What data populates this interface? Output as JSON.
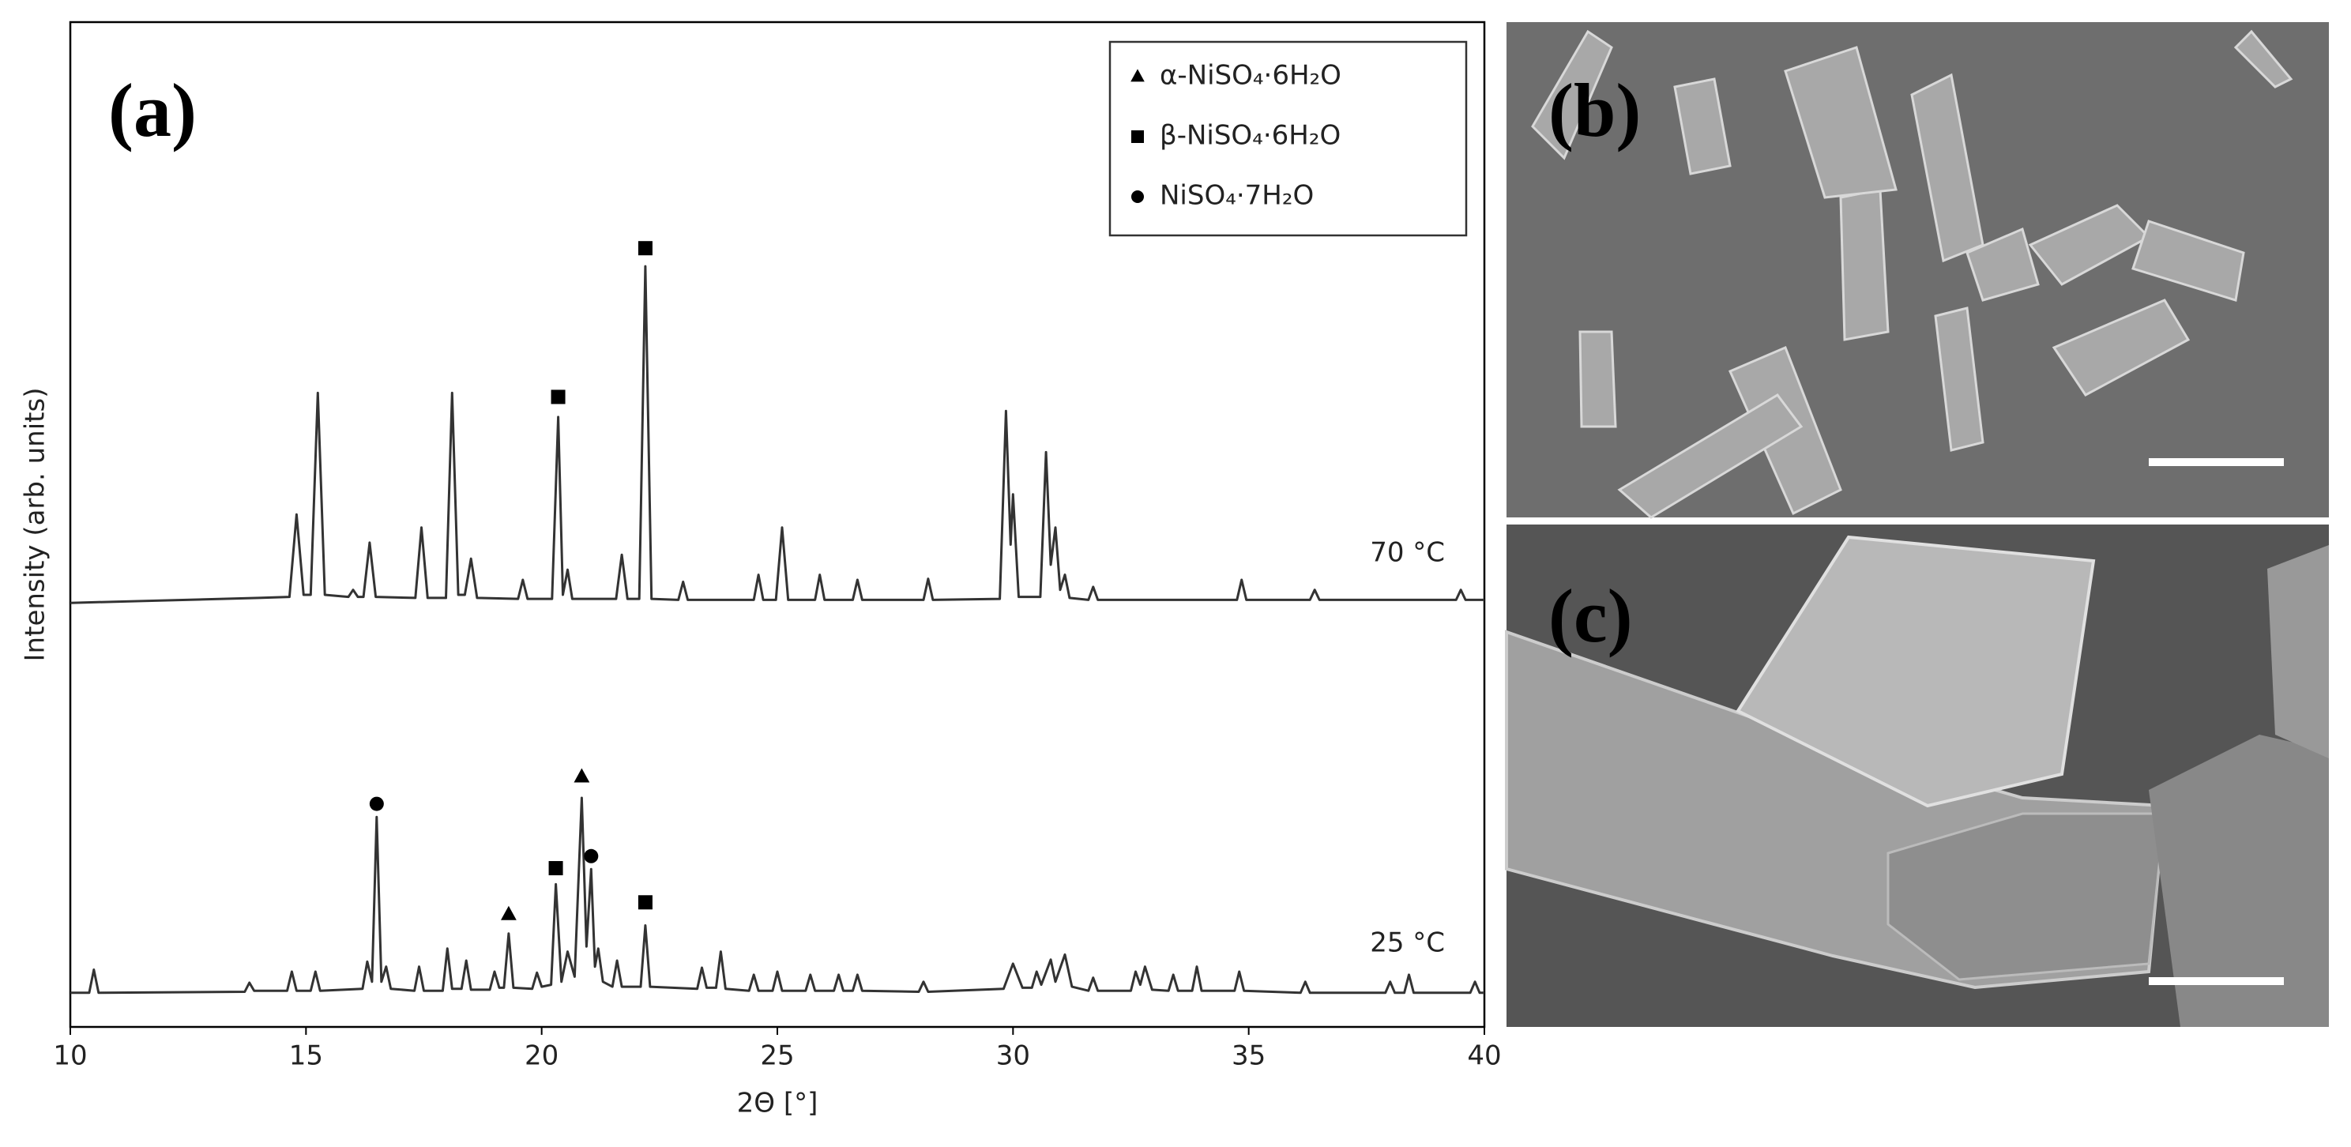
{
  "chart_data": {
    "type": "line",
    "xlabel": "2Θ [°]",
    "ylabel": "Intensity (arb. units)",
    "panel_label": "(a)",
    "xlim": [
      10,
      40
    ],
    "xticks": [
      10,
      15,
      20,
      25,
      30,
      35,
      40
    ],
    "ylim": [
      0,
      100
    ],
    "series": [
      {
        "name": "70 °C",
        "color": "#333333",
        "x": [
          10,
          14.0,
          14.65,
          14.8,
          14.95,
          15.1,
          15.25,
          15.4,
          15.9,
          16.0,
          16.1,
          16.22,
          16.35,
          16.48,
          17.32,
          17.45,
          17.58,
          17.97,
          18.1,
          18.23,
          18.37,
          18.5,
          18.63,
          19.5,
          19.6,
          19.7,
          20.22,
          20.35,
          20.45,
          20.55,
          20.65,
          21.58,
          21.7,
          21.82,
          22.07,
          22.2,
          22.33,
          22.9,
          23.0,
          23.1,
          24.5,
          24.6,
          24.7,
          24.97,
          25.1,
          25.23,
          25.8,
          25.9,
          26.0,
          26.6,
          26.7,
          26.8,
          28.1,
          28.2,
          28.3,
          29.72,
          29.85,
          29.95,
          30.0,
          30.12,
          30.58,
          30.7,
          30.8,
          30.9,
          31.0,
          31.1,
          31.2,
          31.6,
          31.7,
          31.8,
          34.75,
          34.85,
          34.95,
          36.3,
          36.4,
          36.5,
          39.4,
          39.5,
          39.6,
          40
        ],
        "values": [
          42.2,
          42.7,
          42.8,
          51,
          43,
          43,
          63.1,
          43,
          42.8,
          43.5,
          42.8,
          42.8,
          48.2,
          42.8,
          42.7,
          49.7,
          42.7,
          42.7,
          63.1,
          43,
          43,
          46.6,
          42.7,
          42.6,
          44.5,
          42.6,
          42.6,
          60.7,
          43,
          45.5,
          42.6,
          42.6,
          47,
          42.6,
          42.6,
          75.7,
          42.6,
          42.5,
          44.3,
          42.5,
          42.5,
          45,
          42.5,
          42.5,
          49.7,
          42.5,
          42.5,
          45,
          42.5,
          42.5,
          44.5,
          42.5,
          42.5,
          44.6,
          42.5,
          42.6,
          61.3,
          48,
          53,
          42.8,
          42.8,
          57.2,
          46,
          49.7,
          43.5,
          45,
          42.7,
          42.5,
          43.8,
          42.5,
          42.5,
          44.5,
          42.5,
          42.5,
          43.5,
          42.5,
          42.5,
          43.5,
          42.5,
          42.5
        ]
      },
      {
        "name": "25 °C",
        "color": "#333333",
        "x": [
          10,
          10.4,
          10.5,
          10.6,
          13.7,
          13.8,
          13.9,
          14.6,
          14.7,
          14.8,
          15.1,
          15.2,
          15.3,
          16.2,
          16.3,
          16.4,
          16.5,
          16.6,
          16.7,
          16.8,
          17.3,
          17.4,
          17.5,
          17.9,
          18.0,
          18.1,
          18.3,
          18.4,
          18.5,
          18.9,
          19.0,
          19.1,
          19.2,
          19.3,
          19.4,
          19.8,
          19.9,
          20.0,
          20.2,
          20.3,
          20.42,
          20.55,
          20.7,
          20.85,
          20.95,
          21.05,
          21.13,
          21.2,
          21.3,
          21.5,
          21.6,
          21.7,
          22.1,
          22.2,
          22.3,
          23.3,
          23.4,
          23.5,
          23.7,
          23.8,
          23.9,
          24.4,
          24.5,
          24.6,
          24.9,
          25.0,
          25.1,
          25.6,
          25.7,
          25.8,
          26.2,
          26.3,
          26.4,
          26.6,
          26.7,
          26.8,
          28.0,
          28.1,
          28.2,
          29.8,
          30.0,
          30.2,
          30.4,
          30.5,
          30.6,
          30.8,
          30.9,
          31.1,
          31.25,
          31.6,
          31.7,
          31.8,
          32.5,
          32.6,
          32.7,
          32.8,
          32.95,
          33.3,
          33.4,
          33.5,
          33.8,
          33.9,
          34.0,
          34.7,
          34.8,
          34.9,
          36.1,
          36.2,
          36.3,
          37.9,
          38.0,
          38.1,
          38.3,
          38.4,
          38.5,
          39.7,
          39.8,
          39.9,
          40
        ],
        "values": [
          3.4,
          3.4,
          5.7,
          3.4,
          3.5,
          4.4,
          3.6,
          3.6,
          5.5,
          3.6,
          3.6,
          5.5,
          3.6,
          3.8,
          6.5,
          4.5,
          20.9,
          4.5,
          6,
          3.8,
          3.6,
          6,
          3.6,
          3.6,
          7.8,
          3.8,
          3.8,
          6.6,
          3.7,
          3.7,
          5.5,
          3.9,
          3.9,
          9.3,
          3.9,
          3.8,
          5.4,
          4,
          4.2,
          14.2,
          4.5,
          7.5,
          5,
          22.8,
          8,
          15.7,
          6,
          7.8,
          4.5,
          4,
          6.6,
          4,
          4,
          10.1,
          4,
          3.8,
          5.9,
          3.9,
          3.9,
          7.5,
          3.8,
          3.6,
          5.2,
          3.6,
          3.6,
          5.5,
          3.6,
          3.6,
          5.2,
          3.6,
          3.6,
          5.2,
          3.6,
          3.6,
          5.2,
          3.6,
          3.5,
          4.5,
          3.5,
          3.8,
          6.3,
          3.9,
          3.9,
          5.5,
          4.2,
          6.7,
          4.5,
          7.2,
          4,
          3.6,
          4.9,
          3.6,
          3.6,
          5.5,
          4.2,
          6,
          3.7,
          3.6,
          5.2,
          3.6,
          3.6,
          6,
          3.6,
          3.6,
          5.5,
          3.6,
          3.4,
          4.5,
          3.4,
          3.4,
          4.5,
          3.4,
          3.4,
          5.2,
          3.4,
          3.4,
          4.5,
          3.4,
          3.4
        ]
      }
    ],
    "legend": [
      {
        "label": "α-NiSO₄·6H₂O",
        "marker": "triangle"
      },
      {
        "label": "β-NiSO₄·6H₂O",
        "marker": "square"
      },
      {
        "label": "NiSO₄·7H₂O",
        "marker": "circle"
      }
    ],
    "legend_position": "upper right",
    "annotations": [
      {
        "x": 20.35,
        "y": 62.7,
        "marker": "square"
      },
      {
        "x": 22.2,
        "y": 77.5,
        "marker": "square"
      },
      {
        "x": 16.5,
        "y": 22.2,
        "marker": "circle"
      },
      {
        "x": 19.3,
        "y": 11.2,
        "marker": "triangle"
      },
      {
        "x": 20.3,
        "y": 15.8,
        "marker": "square"
      },
      {
        "x": 20.85,
        "y": 24.9,
        "marker": "triangle"
      },
      {
        "x": 21.05,
        "y": 17,
        "marker": "circle"
      },
      {
        "x": 22.2,
        "y": 12.4,
        "marker": "square"
      }
    ]
  },
  "images": [
    {
      "label": "(b)"
    },
    {
      "label": "(c)"
    }
  ]
}
